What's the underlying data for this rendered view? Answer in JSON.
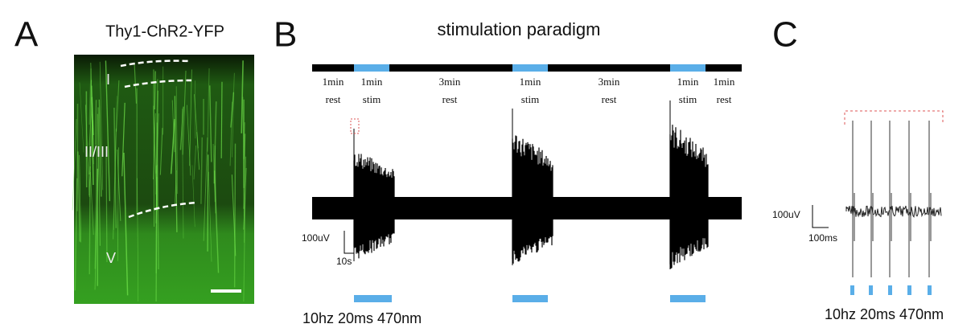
{
  "panel_a": {
    "label": "A",
    "title": "Thy1-ChR2-YFP",
    "layers": [
      "I",
      "II/III",
      "V"
    ]
  },
  "panel_b": {
    "label": "B",
    "title": "stimulation paradigm",
    "segments": [
      {
        "top": "1min",
        "bottom": "rest"
      },
      {
        "top": "1min",
        "bottom": "stim"
      },
      {
        "top": "3min",
        "bottom": "rest"
      },
      {
        "top": "1min",
        "bottom": "stim"
      },
      {
        "top": "3min",
        "bottom": "rest"
      },
      {
        "top": "1min",
        "bottom": "stim"
      },
      {
        "top": "1min",
        "bottom": "rest"
      }
    ],
    "scale_y": "100uV",
    "scale_x": "10s",
    "stimulus": "10hz 20ms 470nm"
  },
  "panel_c": {
    "label": "C",
    "scale_y": "100uV",
    "scale_x": "100ms",
    "stimulus": "10hz 20ms 470nm"
  }
}
